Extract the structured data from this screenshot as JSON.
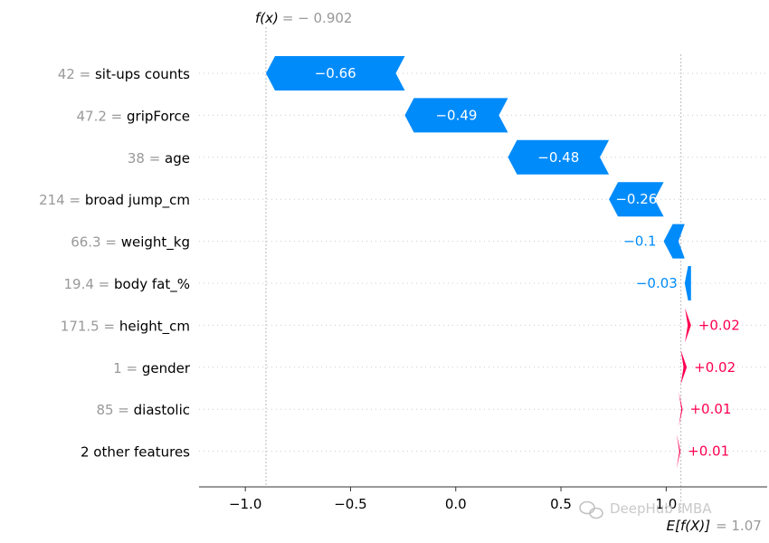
{
  "chart_data": {
    "type": "waterfall",
    "features": [
      {
        "value": "42",
        "name": "sit-ups counts",
        "shap": -0.66,
        "label": "−0.66"
      },
      {
        "value": "47.2",
        "name": "gripForce",
        "shap": -0.49,
        "label": "−0.49"
      },
      {
        "value": "38",
        "name": "age",
        "shap": -0.48,
        "label": "−0.48"
      },
      {
        "value": "214",
        "name": "broad jump_cm",
        "shap": -0.26,
        "label": "−0.26"
      },
      {
        "value": "66.3",
        "name": "weight_kg",
        "shap": -0.1,
        "label": "−0.1"
      },
      {
        "value": "19.4",
        "name": "body fat_%",
        "shap": -0.03,
        "label": "−0.03"
      },
      {
        "value": "171.5",
        "name": "height_cm",
        "shap": 0.02,
        "label": "+0.02"
      },
      {
        "value": "1",
        "name": "gender",
        "shap": 0.02,
        "label": "+0.02"
      },
      {
        "value": "85",
        "name": "diastolic",
        "shap": 0.01,
        "label": "+0.01"
      },
      {
        "value": "",
        "name": "2 other features",
        "shap": 0.01,
        "label": "+0.01"
      }
    ],
    "fx": {
      "prefix": "f(x)",
      "value": "= − 0.902",
      "number": -0.902
    },
    "efx": {
      "prefix": "E[f(X)]",
      "value": "= 1.07",
      "number": 1.07
    },
    "xticks": [
      {
        "v": -1.0,
        "label": "−1.0"
      },
      {
        "v": -0.5,
        "label": "−0.5"
      },
      {
        "v": 0.0,
        "label": "0.0"
      },
      {
        "v": 0.5,
        "label": "0.5"
      },
      {
        "v": 1.0,
        "label": "1.0"
      }
    ],
    "xlim": [
      -1.22,
      1.48
    ],
    "colors": {
      "negative": "#008bfb",
      "positive": "#ff0051",
      "value_grey": "#999999",
      "name_dark": "#000000",
      "axis": "#333333",
      "gridline": "#cccccc"
    }
  },
  "watermark": {
    "text": "DeepHub IMBA"
  }
}
